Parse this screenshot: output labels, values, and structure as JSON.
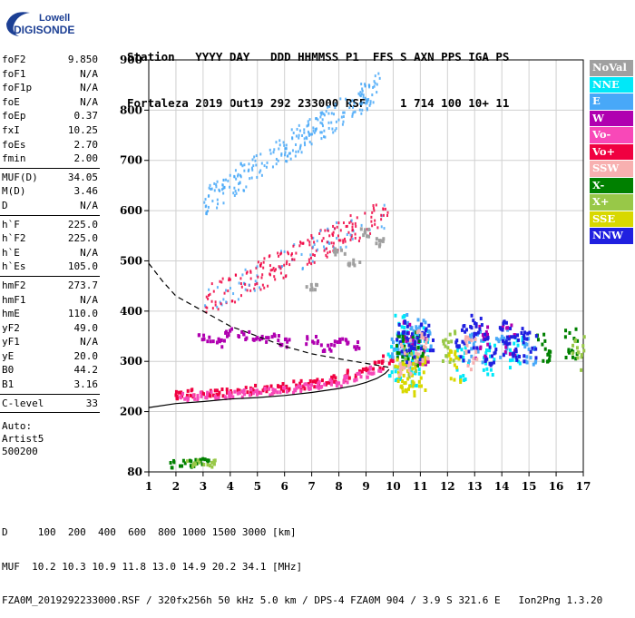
{
  "logo": {
    "line1": "Lowell",
    "line2": "DIGISONDE"
  },
  "header": {
    "labels_line": "Station   YYYY DAY   DDD HHMMSS P1  FFS S AXN PPS IGA PS",
    "values_line": "Fortaleza 2019 Out19 292 233000 RSF     1 714 100 10+ 11"
  },
  "params": {
    "group1": [
      {
        "label": "foF2",
        "value": "9.850"
      },
      {
        "label": "foF1",
        "value": "N/A"
      },
      {
        "label": "foF1p",
        "value": "N/A"
      },
      {
        "label": "foE",
        "value": "N/A"
      },
      {
        "label": "foEp",
        "value": "0.37"
      },
      {
        "label": "fxI",
        "value": "10.25"
      },
      {
        "label": "foEs",
        "value": "2.70"
      },
      {
        "label": "fmin",
        "value": "2.00"
      }
    ],
    "group2": [
      {
        "label": "MUF(D)",
        "value": "34.05"
      },
      {
        "label": "M(D)",
        "value": "3.46"
      },
      {
        "label": "D",
        "value": "N/A"
      }
    ],
    "group3": [
      {
        "label": "h`F",
        "value": "225.0"
      },
      {
        "label": "h`F2",
        "value": "225.0"
      },
      {
        "label": "h`E",
        "value": "N/A"
      },
      {
        "label": "h`Es",
        "value": "105.0"
      }
    ],
    "group4": [
      {
        "label": "hmF2",
        "value": "273.7"
      },
      {
        "label": "hmF1",
        "value": "N/A"
      },
      {
        "label": "hmE",
        "value": "110.0"
      },
      {
        "label": "yF2",
        "value": "49.0"
      },
      {
        "label": "yF1",
        "value": "N/A"
      },
      {
        "label": "yE",
        "value": "20.0"
      },
      {
        "label": "B0",
        "value": "44.2"
      },
      {
        "label": "B1",
        "value": "3.16"
      }
    ],
    "group5": [
      {
        "label": "C-level",
        "value": "33"
      }
    ],
    "footer_lines": [
      "Auto:",
      "Artist5",
      "500200"
    ]
  },
  "legend": [
    {
      "label": "NoVal",
      "color": "#a0a0a0"
    },
    {
      "label": "NNE",
      "color": "#00e8f8"
    },
    {
      "label": "E",
      "color": "#48a8f8"
    },
    {
      "label": "W",
      "color": "#b000b0"
    },
    {
      "label": "Vo-",
      "color": "#f848b8"
    },
    {
      "label": "Vo+",
      "color": "#f00040"
    },
    {
      "label": "SSW",
      "color": "#f8b0b0"
    },
    {
      "label": "X-",
      "color": "#008000"
    },
    {
      "label": "X+",
      "color": "#98c848"
    },
    {
      "label": "SSE",
      "color": "#d8d800"
    },
    {
      "label": "NNW",
      "color": "#2020e0"
    }
  ],
  "bottom": {
    "line1": "D     100  200  400  600  800 1000 1500 3000 [km]",
    "line2": "MUF  10.2 10.3 10.9 11.8 13.0 14.9 20.2 34.1 [MHz]",
    "line3": "FZA0M_2019292233000.RSF / 320fx256h 50 kHz 5.0 km / DPS-4 FZA0M 904 / 3.9 S 321.6 E   Ion2Png 1.3.20"
  },
  "chart_data": {
    "type": "scatter",
    "title": "",
    "xlabel": "",
    "ylabel": "",
    "xlim": [
      1,
      17
    ],
    "ylim": [
      80,
      900
    ],
    "x_ticks": [
      1,
      2,
      3,
      4,
      5,
      6,
      7,
      8,
      9,
      10,
      11,
      12,
      13,
      14,
      15,
      16,
      17
    ],
    "y_ticks": [
      80,
      200,
      300,
      400,
      500,
      600,
      700,
      800,
      900
    ],
    "grid": true,
    "legend_position": "right",
    "series": [
      {
        "name": "Vo+",
        "color": "#f00040",
        "x": [
          2.2,
          2.5,
          3.0,
          3.5,
          4.0,
          4.5,
          5.0,
          5.5,
          6.0,
          6.5,
          7.0,
          7.5,
          8.0,
          8.5,
          9.0,
          9.4,
          9.7
        ],
        "y": [
          236,
          240,
          238,
          242,
          242,
          245,
          248,
          250,
          252,
          257,
          260,
          265,
          270,
          278,
          288,
          296,
          306
        ]
      },
      {
        "name": "Vo-",
        "color": "#f848b8",
        "x": [
          2.3,
          2.8,
          3.3,
          3.8,
          4.3,
          4.8,
          5.3,
          5.8,
          6.3,
          6.8,
          7.3,
          7.8,
          8.3,
          8.8,
          9.3
        ],
        "y": [
          232,
          234,
          236,
          238,
          240,
          241,
          244,
          246,
          248,
          252,
          256,
          262,
          268,
          275,
          286
        ]
      },
      {
        "name": "NNE",
        "color": "#00e8f8",
        "x": [
          10.0,
          10.2,
          10.5,
          10.8,
          11.0,
          12.5,
          13.5,
          14.5
        ],
        "y": [
          300,
          360,
          330,
          290,
          340,
          300,
          310,
          320
        ]
      },
      {
        "name": "E",
        "color": "#48a8f8",
        "x": [
          10.1,
          10.4,
          10.7,
          11.1,
          13.0,
          14.0,
          15.0
        ],
        "y": [
          330,
          320,
          370,
          350,
          330,
          340,
          330
        ]
      },
      {
        "name": "W",
        "color": "#b000b0",
        "x": [
          3.0,
          3.5,
          4.0,
          4.5,
          5.0,
          5.5,
          6.0,
          7.0,
          7.5,
          8.0,
          8.5,
          10.5,
          11.0,
          13.2,
          14.2
        ],
        "y": [
          350,
          340,
          360,
          355,
          345,
          350,
          340,
          345,
          330,
          340,
          335,
          350,
          330,
          340,
          350
        ]
      },
      {
        "name": "X-",
        "color": "#008000",
        "x": [
          2.0,
          2.5,
          3.0,
          10.3,
          10.8,
          15.5,
          16.5
        ],
        "y": [
          98,
          100,
          102,
          320,
          330,
          330,
          340
        ]
      },
      {
        "name": "X+",
        "color": "#98c848",
        "x": [
          2.6,
          3.2,
          10.6,
          12.0,
          16.8
        ],
        "y": [
          100,
          100,
          300,
          330,
          320
        ]
      },
      {
        "name": "SSE",
        "color": "#d8d800",
        "x": [
          10.2,
          10.5,
          10.9,
          12.2
        ],
        "y": [
          275,
          270,
          280,
          290
        ]
      },
      {
        "name": "NNW",
        "color": "#2020e0",
        "x": [
          10.3,
          10.7,
          11.2,
          12.5,
          13.0,
          13.5,
          14.0,
          14.5,
          15.0
        ],
        "y": [
          350,
          330,
          360,
          340,
          360,
          330,
          350,
          340,
          330
        ]
      },
      {
        "name": "SSW",
        "color": "#f8b0b0",
        "x": [
          10.4,
          11.0,
          12.8
        ],
        "y": [
          310,
          330,
          320
        ]
      },
      {
        "name": "NoVal",
        "color": "#a0a0a0",
        "x": [
          8.0,
          8.5,
          9.0,
          9.5,
          7.0
        ],
        "y": [
          520,
          500,
          560,
          540,
          450
        ]
      }
    ],
    "lines": [
      {
        "name": "profile",
        "style": "solid",
        "x": [
          1.0,
          2.0,
          3.0,
          4.0,
          5.0,
          6.0,
          7.0,
          8.0,
          8.6,
          9.0,
          9.4,
          9.7,
          9.85
        ],
        "y": [
          208,
          216,
          220,
          225,
          228,
          232,
          238,
          246,
          252,
          258,
          266,
          276,
          284
        ]
      },
      {
        "name": "profile-upper",
        "style": "dashed",
        "x": [
          1.0,
          1.5,
          2.0,
          3.0,
          4.0,
          5.0,
          6.0,
          7.0,
          8.0,
          9.0,
          9.85
        ],
        "y": [
          495,
          460,
          430,
          400,
          370,
          350,
          330,
          315,
          305,
          296,
          288
        ]
      }
    ],
    "clusters": [
      {
        "color": "#f00040",
        "x_range": [
          3.0,
          9.8
        ],
        "y_from": [
          420,
          600
        ],
        "slope": true
      },
      {
        "color": "#48a8f8",
        "x_range": [
          3.0,
          9.5
        ],
        "y_from": [
          620,
          850
        ],
        "slope": true
      }
    ]
  }
}
